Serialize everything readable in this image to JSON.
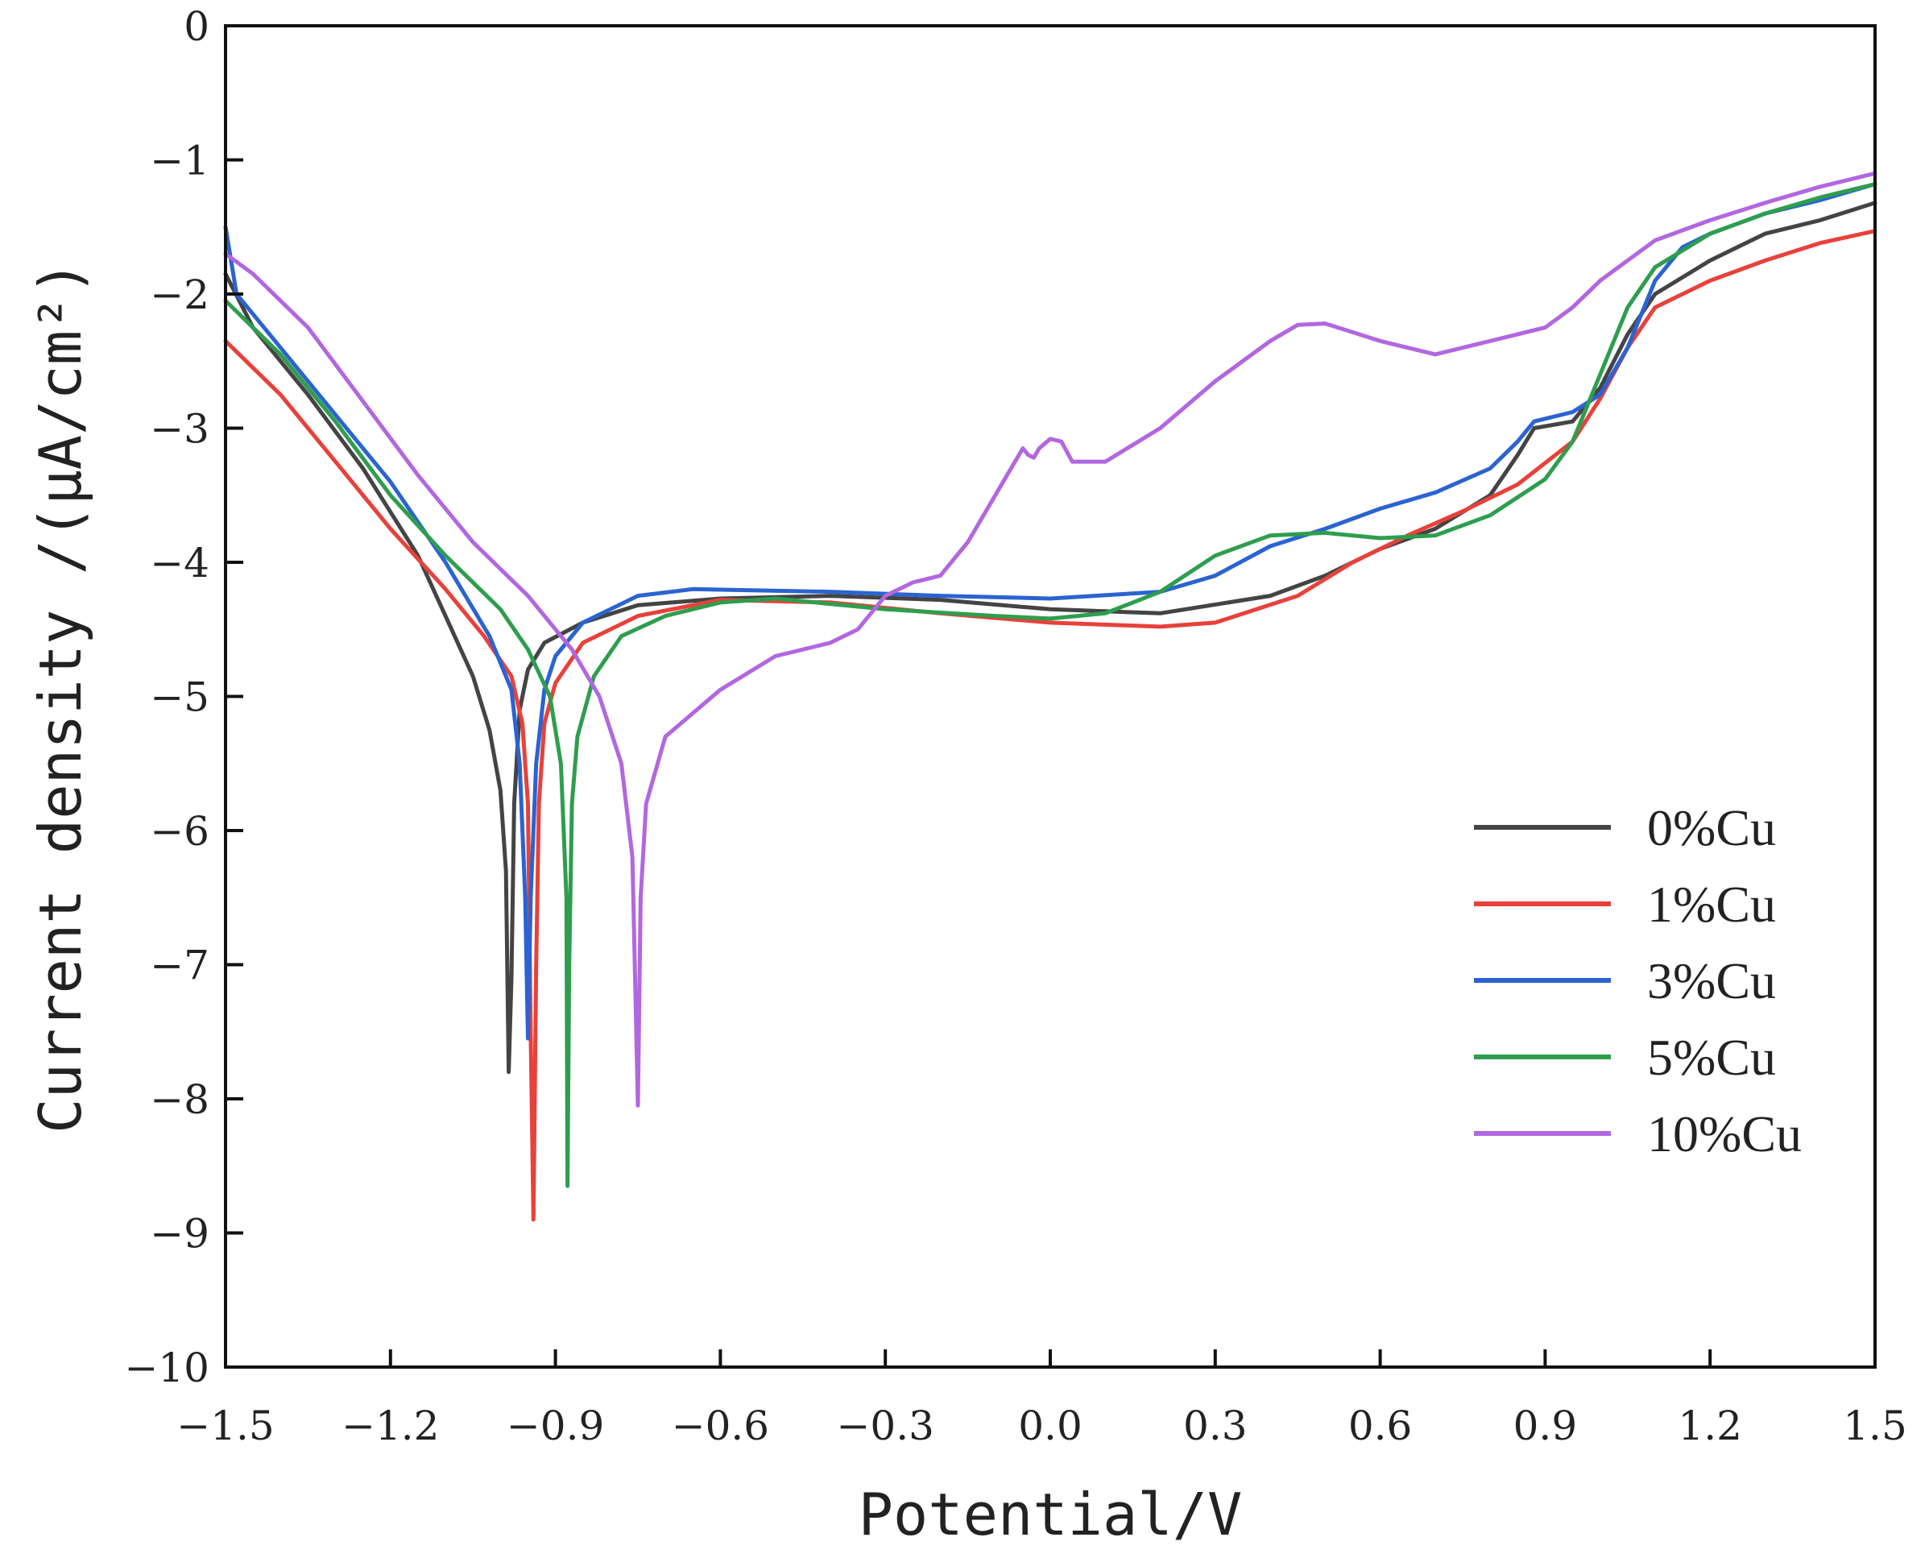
{
  "chart_data": {
    "type": "line",
    "title": "",
    "xlabel": "Potential/V",
    "ylabel": "Current density /(μA/cm²)",
    "xlim": [
      -1.5,
      1.5
    ],
    "ylim": [
      -10,
      0
    ],
    "x_ticks": [
      -1.5,
      -1.2,
      -0.9,
      -0.6,
      -0.3,
      0.0,
      0.3,
      0.6,
      0.9,
      1.2,
      1.5
    ],
    "x_tick_labels": [
      "−1.5",
      "−1.2",
      "−0.9",
      "−0.6",
      "−0.3",
      "0.0",
      "0.3",
      "0.6",
      "0.9",
      "1.2",
      "1.5"
    ],
    "y_ticks": [
      0,
      -1,
      -2,
      -3,
      -4,
      -5,
      -6,
      -7,
      -8,
      -9,
      -10
    ],
    "y_tick_labels": [
      "0",
      "−1",
      "−2",
      "−3",
      "−4",
      "−5",
      "−6",
      "−7",
      "−8",
      "−9",
      "−10"
    ],
    "grid": false,
    "legend_position": "bottom-right",
    "series": [
      {
        "name": "0%Cu",
        "color": "#444444",
        "points": [
          [
            -1.5,
            -1.85
          ],
          [
            -1.45,
            -2.25
          ],
          [
            -1.35,
            -2.75
          ],
          [
            -1.25,
            -3.3
          ],
          [
            -1.15,
            -3.95
          ],
          [
            -1.1,
            -4.4
          ],
          [
            -1.05,
            -4.85
          ],
          [
            -1.02,
            -5.25
          ],
          [
            -1.0,
            -5.7
          ],
          [
            -0.99,
            -6.3
          ],
          [
            -0.985,
            -7.8
          ],
          [
            -0.98,
            -7.1
          ],
          [
            -0.975,
            -5.8
          ],
          [
            -0.965,
            -5.1
          ],
          [
            -0.95,
            -4.8
          ],
          [
            -0.92,
            -4.6
          ],
          [
            -0.85,
            -4.45
          ],
          [
            -0.75,
            -4.32
          ],
          [
            -0.6,
            -4.27
          ],
          [
            -0.4,
            -4.25
          ],
          [
            -0.2,
            -4.28
          ],
          [
            0.0,
            -4.35
          ],
          [
            0.2,
            -4.38
          ],
          [
            0.4,
            -4.25
          ],
          [
            0.5,
            -4.1
          ],
          [
            0.6,
            -3.9
          ],
          [
            0.7,
            -3.75
          ],
          [
            0.8,
            -3.5
          ],
          [
            0.85,
            -3.2
          ],
          [
            0.88,
            -3.0
          ],
          [
            0.95,
            -2.95
          ],
          [
            1.0,
            -2.7
          ],
          [
            1.05,
            -2.3
          ],
          [
            1.1,
            -2.0
          ],
          [
            1.2,
            -1.75
          ],
          [
            1.3,
            -1.55
          ],
          [
            1.4,
            -1.45
          ],
          [
            1.5,
            -1.32
          ]
        ]
      },
      {
        "name": "1%Cu",
        "color": "#e8413b",
        "points": [
          [
            -1.5,
            -2.35
          ],
          [
            -1.4,
            -2.75
          ],
          [
            -1.3,
            -3.25
          ],
          [
            -1.2,
            -3.75
          ],
          [
            -1.1,
            -4.2
          ],
          [
            -1.03,
            -4.55
          ],
          [
            -0.98,
            -4.85
          ],
          [
            -0.96,
            -5.2
          ],
          [
            -0.95,
            -5.8
          ],
          [
            -0.945,
            -7.5
          ],
          [
            -0.94,
            -8.9
          ],
          [
            -0.935,
            -7.0
          ],
          [
            -0.93,
            -5.8
          ],
          [
            -0.92,
            -5.2
          ],
          [
            -0.9,
            -4.9
          ],
          [
            -0.85,
            -4.6
          ],
          [
            -0.75,
            -4.4
          ],
          [
            -0.6,
            -4.28
          ],
          [
            -0.4,
            -4.3
          ],
          [
            -0.2,
            -4.38
          ],
          [
            0.0,
            -4.45
          ],
          [
            0.2,
            -4.48
          ],
          [
            0.3,
            -4.45
          ],
          [
            0.45,
            -4.25
          ],
          [
            0.55,
            -4.0
          ],
          [
            0.65,
            -3.8
          ],
          [
            0.75,
            -3.62
          ],
          [
            0.85,
            -3.42
          ],
          [
            0.95,
            -3.1
          ],
          [
            1.0,
            -2.78
          ],
          [
            1.05,
            -2.4
          ],
          [
            1.1,
            -2.1
          ],
          [
            1.2,
            -1.9
          ],
          [
            1.3,
            -1.75
          ],
          [
            1.4,
            -1.62
          ],
          [
            1.5,
            -1.53
          ]
        ]
      },
      {
        "name": "3%Cu",
        "color": "#2b63d1",
        "points": [
          [
            -1.5,
            -1.5
          ],
          [
            -1.48,
            -2.0
          ],
          [
            -1.4,
            -2.4
          ],
          [
            -1.3,
            -2.9
          ],
          [
            -1.2,
            -3.4
          ],
          [
            -1.1,
            -4.0
          ],
          [
            -1.02,
            -4.55
          ],
          [
            -0.98,
            -4.95
          ],
          [
            -0.965,
            -5.5
          ],
          [
            -0.955,
            -6.5
          ],
          [
            -0.95,
            -7.55
          ],
          [
            -0.945,
            -6.5
          ],
          [
            -0.935,
            -5.5
          ],
          [
            -0.92,
            -4.95
          ],
          [
            -0.9,
            -4.7
          ],
          [
            -0.85,
            -4.45
          ],
          [
            -0.75,
            -4.25
          ],
          [
            -0.65,
            -4.2
          ],
          [
            -0.4,
            -4.22
          ],
          [
            -0.2,
            -4.25
          ],
          [
            0.0,
            -4.27
          ],
          [
            0.2,
            -4.22
          ],
          [
            0.3,
            -4.1
          ],
          [
            0.4,
            -3.88
          ],
          [
            0.5,
            -3.75
          ],
          [
            0.6,
            -3.6
          ],
          [
            0.7,
            -3.48
          ],
          [
            0.8,
            -3.3
          ],
          [
            0.85,
            -3.1
          ],
          [
            0.88,
            -2.95
          ],
          [
            0.95,
            -2.88
          ],
          [
            1.0,
            -2.75
          ],
          [
            1.05,
            -2.4
          ],
          [
            1.1,
            -1.9
          ],
          [
            1.15,
            -1.65
          ],
          [
            1.2,
            -1.55
          ],
          [
            1.3,
            -1.4
          ],
          [
            1.4,
            -1.3
          ],
          [
            1.5,
            -1.18
          ]
        ]
      },
      {
        "name": "5%Cu",
        "color": "#2e9e4e",
        "points": [
          [
            -1.5,
            -2.05
          ],
          [
            -1.4,
            -2.45
          ],
          [
            -1.3,
            -2.95
          ],
          [
            -1.2,
            -3.5
          ],
          [
            -1.1,
            -3.95
          ],
          [
            -1.0,
            -4.35
          ],
          [
            -0.95,
            -4.65
          ],
          [
            -0.91,
            -5.0
          ],
          [
            -0.89,
            -5.5
          ],
          [
            -0.88,
            -6.5
          ],
          [
            -0.878,
            -8.65
          ],
          [
            -0.875,
            -7.0
          ],
          [
            -0.87,
            -5.8
          ],
          [
            -0.86,
            -5.3
          ],
          [
            -0.83,
            -4.85
          ],
          [
            -0.78,
            -4.55
          ],
          [
            -0.7,
            -4.4
          ],
          [
            -0.6,
            -4.3
          ],
          [
            -0.5,
            -4.27
          ],
          [
            -0.3,
            -4.35
          ],
          [
            -0.1,
            -4.4
          ],
          [
            0.0,
            -4.42
          ],
          [
            0.1,
            -4.38
          ],
          [
            0.2,
            -4.22
          ],
          [
            0.3,
            -3.95
          ],
          [
            0.4,
            -3.8
          ],
          [
            0.5,
            -3.78
          ],
          [
            0.6,
            -3.82
          ],
          [
            0.7,
            -3.8
          ],
          [
            0.8,
            -3.65
          ],
          [
            0.9,
            -3.38
          ],
          [
            0.95,
            -3.1
          ],
          [
            1.0,
            -2.6
          ],
          [
            1.05,
            -2.1
          ],
          [
            1.1,
            -1.8
          ],
          [
            1.2,
            -1.55
          ],
          [
            1.3,
            -1.4
          ],
          [
            1.4,
            -1.28
          ],
          [
            1.5,
            -1.18
          ]
        ]
      },
      {
        "name": "10%Cu",
        "color": "#b267e0",
        "points": [
          [
            -1.5,
            -1.7
          ],
          [
            -1.45,
            -1.85
          ],
          [
            -1.35,
            -2.25
          ],
          [
            -1.25,
            -2.8
          ],
          [
            -1.15,
            -3.35
          ],
          [
            -1.05,
            -3.85
          ],
          [
            -0.95,
            -4.25
          ],
          [
            -0.87,
            -4.65
          ],
          [
            -0.82,
            -5.0
          ],
          [
            -0.78,
            -5.5
          ],
          [
            -0.76,
            -6.2
          ],
          [
            -0.75,
            -8.05
          ],
          [
            -0.745,
            -6.5
          ],
          [
            -0.735,
            -5.8
          ],
          [
            -0.7,
            -5.3
          ],
          [
            -0.6,
            -4.95
          ],
          [
            -0.5,
            -4.7
          ],
          [
            -0.4,
            -4.6
          ],
          [
            -0.35,
            -4.5
          ],
          [
            -0.3,
            -4.25
          ],
          [
            -0.25,
            -4.15
          ],
          [
            -0.2,
            -4.1
          ],
          [
            -0.15,
            -3.85
          ],
          [
            -0.1,
            -3.5
          ],
          [
            -0.05,
            -3.15
          ],
          [
            -0.04,
            -3.2
          ],
          [
            -0.03,
            -3.22
          ],
          [
            -0.02,
            -3.15
          ],
          [
            0.0,
            -3.08
          ],
          [
            0.02,
            -3.1
          ],
          [
            0.04,
            -3.25
          ],
          [
            0.1,
            -3.25
          ],
          [
            0.2,
            -3.0
          ],
          [
            0.3,
            -2.65
          ],
          [
            0.4,
            -2.35
          ],
          [
            0.45,
            -2.23
          ],
          [
            0.5,
            -2.22
          ],
          [
            0.6,
            -2.35
          ],
          [
            0.7,
            -2.45
          ],
          [
            0.8,
            -2.35
          ],
          [
            0.9,
            -2.25
          ],
          [
            0.95,
            -2.1
          ],
          [
            1.0,
            -1.9
          ],
          [
            1.05,
            -1.75
          ],
          [
            1.1,
            -1.6
          ],
          [
            1.2,
            -1.45
          ],
          [
            1.3,
            -1.32
          ],
          [
            1.4,
            -1.2
          ],
          [
            1.5,
            -1.1
          ]
        ]
      }
    ]
  }
}
